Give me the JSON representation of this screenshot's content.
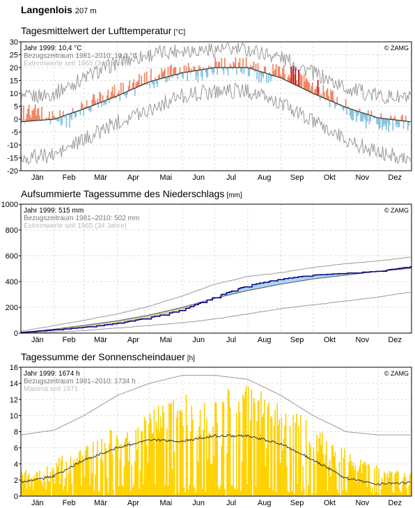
{
  "station": {
    "name": "Langenlois",
    "altitude": "207 m"
  },
  "months": [
    "Jän",
    "Feb",
    "Mär",
    "Apr",
    "Mai",
    "Jun",
    "Jul",
    "Aug",
    "Sep",
    "Okt",
    "Nov",
    "Dez"
  ],
  "copyright": "© ZAMG",
  "colors": {
    "warm": "#ee8866",
    "warm_extreme": "#bb1122",
    "cold": "#88c4dd",
    "cold_extreme": "#2266aa",
    "precip_line": "#00008b",
    "precip_fill_above": "#aad4ee",
    "precip_fill_below": "#d8ccaa",
    "sunshine": "#ffd200",
    "envelope": "#999999",
    "mean": "#333333"
  },
  "chart_data": [
    {
      "type": "line",
      "title": "Tagesmittelwert der Lufttemperatur",
      "unit": "[°C]",
      "legend": [
        "Jahr 1999: 10,4 °C",
        "Bezugszeitraum 1981–2010: 10,0 °C",
        "Extremwerte seit 1965 (34 Jahre)"
      ],
      "ylim": [
        -20,
        30
      ],
      "yticks": [
        30,
        25,
        20,
        15,
        10,
        5,
        0,
        -5,
        -10,
        -15,
        -20
      ],
      "grid": true,
      "climatology_monthly": {
        "x": [
          1,
          32,
          60,
          91,
          121,
          152,
          182,
          213,
          244,
          274,
          305,
          335,
          365
        ],
        "mean": [
          -1,
          0,
          4,
          9,
          14.5,
          18,
          20,
          20,
          16,
          10,
          4.5,
          0.5,
          -1
        ],
        "max": [
          8,
          10,
          16,
          22,
          25,
          27,
          27,
          27,
          24,
          18,
          12,
          9,
          8
        ],
        "min": [
          -15,
          -14,
          -8,
          -1,
          4,
          9,
          11,
          11,
          6,
          -1,
          -8,
          -13,
          -15
        ]
      },
      "series_1999_monthly_anomaly": {
        "x": [
          15,
          46,
          74,
          105,
          135,
          166,
          196,
          227,
          258,
          288,
          319,
          349
        ],
        "anomaly": [
          3,
          -2,
          2,
          1,
          1,
          -1,
          1,
          -1,
          4,
          1,
          -2,
          -1
        ]
      }
    },
    {
      "type": "line",
      "title": "Aufsummierte Tagessumme des Niederschlags",
      "unit": "[mm]",
      "legend": [
        "Jahr 1999: 515 mm",
        "Bezugszeitraum 1981–2010: 502 mm",
        "Extremwerte seit 1965 (34 Jahre)"
      ],
      "ylim": [
        0,
        1000
      ],
      "yticks": [
        1000,
        800,
        600,
        400,
        200,
        0
      ],
      "grid": true,
      "series": [
        {
          "name": "Jahr 1999",
          "x": [
            1,
            32,
            60,
            91,
            121,
            152,
            182,
            213,
            244,
            274,
            305,
            335,
            365
          ],
          "values": [
            5,
            25,
            45,
            75,
            120,
            180,
            280,
            370,
            420,
            450,
            465,
            480,
            515
          ]
        },
        {
          "name": "Bezugszeitraum 1981–2010",
          "x": [
            1,
            32,
            60,
            91,
            121,
            152,
            182,
            213,
            244,
            274,
            305,
            335,
            365
          ],
          "values": [
            5,
            30,
            60,
            95,
            140,
            200,
            270,
            330,
            380,
            420,
            450,
            480,
            502
          ]
        },
        {
          "name": "Maximum",
          "x": [
            1,
            32,
            60,
            91,
            121,
            152,
            182,
            213,
            244,
            274,
            305,
            335,
            365
          ],
          "values": [
            15,
            60,
            100,
            150,
            210,
            290,
            380,
            440,
            470,
            510,
            540,
            560,
            590
          ]
        },
        {
          "name": "Minimum",
          "x": [
            1,
            32,
            60,
            91,
            121,
            152,
            182,
            213,
            244,
            274,
            305,
            335,
            365
          ],
          "values": [
            0,
            10,
            20,
            40,
            60,
            80,
            110,
            150,
            190,
            220,
            250,
            280,
            320
          ]
        }
      ]
    },
    {
      "type": "bar",
      "title": "Tagessumme der Sonnenscheindauer",
      "unit": "[h]",
      "legend": [
        "Jahr 1999: 1674 h",
        "Bezugszeitraum 1981–2010: 1734 h",
        "Maxima seit 1971"
      ],
      "ylim": [
        0,
        16
      ],
      "yticks": [
        16,
        14,
        12,
        10,
        8,
        6,
        4,
        2,
        0
      ],
      "grid": true,
      "monthly_typical_sunny_day": {
        "x": [
          15,
          46,
          74,
          105,
          135,
          166,
          196,
          227,
          258,
          288,
          319,
          349
        ],
        "values": [
          3,
          5,
          7,
          9,
          11,
          12,
          13,
          12,
          10,
          7,
          4,
          3
        ]
      },
      "maxima_monthly": {
        "x": [
          1,
          32,
          60,
          91,
          121,
          152,
          182,
          213,
          244,
          274,
          305,
          335,
          365
        ],
        "values": [
          7.6,
          8.2,
          10,
          12.5,
          14,
          15,
          15,
          14.5,
          12.5,
          10,
          8,
          7.6,
          7.6
        ]
      },
      "mean_monthly": {
        "x": [
          1,
          32,
          60,
          91,
          121,
          152,
          182,
          213,
          244,
          274,
          305,
          335,
          365
        ],
        "values": [
          1.7,
          2.5,
          4.5,
          6,
          7,
          6.8,
          7.5,
          7.5,
          6.5,
          4.5,
          2.2,
          1.5,
          1.7
        ]
      }
    }
  ]
}
